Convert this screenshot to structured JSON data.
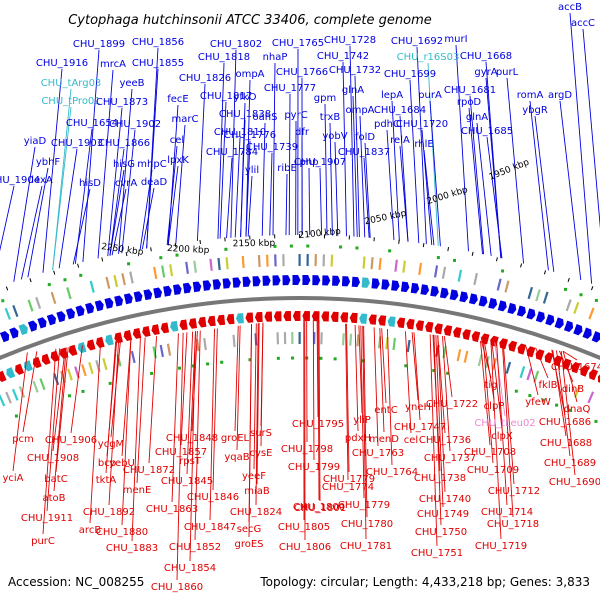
{
  "title": "Cytophaga hutchinsonii ATCC 33406, complete genome",
  "footer": {
    "accession": "Accession: NC_008255",
    "summary": "Topology: circular; Length: 4,433,218 bp; Genes: 3,833"
  },
  "kbp_ticks": [
    "1950 kbp",
    "2000 kbp",
    "2050 kbp",
    "2100 kbp",
    "2150 kbp",
    "2200 kbp",
    "2250 kbp"
  ],
  "colors": {
    "forward": "#0000e0",
    "reverse": "#e00000",
    "rna": "#33bbcc",
    "rrna_reverse": "#ee88cc",
    "backbone": "#777777"
  },
  "forward_labels": [
    {
      "text": "accB",
      "c": "forward"
    },
    {
      "text": "accC",
      "c": "forward"
    },
    {
      "text": "CHU_1692",
      "c": "forward"
    },
    {
      "text": "murI",
      "c": "forward"
    },
    {
      "text": "CHU_1728",
      "c": "forward"
    },
    {
      "text": "CHU_1668",
      "c": "forward"
    },
    {
      "text": "CHU_1765",
      "c": "forward"
    },
    {
      "text": "CHU_1802",
      "c": "forward"
    },
    {
      "text": "CHU_1856",
      "c": "forward"
    },
    {
      "text": "CHU_1899",
      "c": "forward"
    },
    {
      "text": "CHU_1742",
      "c": "forward"
    },
    {
      "text": "CHU_r16S03",
      "c": "rna"
    },
    {
      "text": "gyrA",
      "c": "forward"
    },
    {
      "text": "purL",
      "c": "forward"
    },
    {
      "text": "CHU_1916",
      "c": "forward"
    },
    {
      "text": "mrcA",
      "c": "forward"
    },
    {
      "text": "CHU_1855",
      "c": "forward"
    },
    {
      "text": "CHU_1818",
      "c": "forward"
    },
    {
      "text": "nhaP",
      "c": "forward"
    },
    {
      "text": "CHU_1732",
      "c": "forward"
    },
    {
      "text": "CHU_1699",
      "c": "forward"
    },
    {
      "text": "CHU_tArg03",
      "c": "rna"
    },
    {
      "text": "yeeB",
      "c": "forward"
    },
    {
      "text": "CHU_1826",
      "c": "forward"
    },
    {
      "text": "ompA",
      "c": "forward"
    },
    {
      "text": "CHU_1766",
      "c": "forward"
    },
    {
      "text": "glnA",
      "c": "forward"
    },
    {
      "text": "lepA",
      "c": "forward"
    },
    {
      "text": "purA",
      "c": "forward"
    },
    {
      "text": "CHU_1681",
      "c": "forward"
    },
    {
      "text": "romA",
      "c": "forward"
    },
    {
      "text": "argD",
      "c": "forward"
    },
    {
      "text": "CHU_tPro01",
      "c": "rna"
    },
    {
      "text": "CHU_1873",
      "c": "forward"
    },
    {
      "text": "fecE",
      "c": "forward"
    },
    {
      "text": "CHU_1817",
      "c": "forward"
    },
    {
      "text": "CHU_1777",
      "c": "forward"
    },
    {
      "text": "gpm",
      "c": "forward"
    },
    {
      "text": "ompA",
      "c": "forward"
    },
    {
      "text": "CHU_1684",
      "c": "forward"
    },
    {
      "text": "rpoD",
      "c": "forward"
    },
    {
      "text": "glnA",
      "c": "forward"
    },
    {
      "text": "ybgR",
      "c": "forward"
    },
    {
      "text": "yfkO",
      "c": "forward"
    },
    {
      "text": "CHU_1654",
      "c": "forward"
    },
    {
      "text": "CHU_1902",
      "c": "forward"
    },
    {
      "text": "marC",
      "c": "forward"
    },
    {
      "text": "CHU_1838",
      "c": "forward"
    },
    {
      "text": "oahS",
      "c": "forward"
    },
    {
      "text": "pyrC",
      "c": "forward"
    },
    {
      "text": "trxB",
      "c": "forward"
    },
    {
      "text": "pdhC",
      "c": "forward"
    },
    {
      "text": "CHU_1720",
      "c": "forward"
    },
    {
      "text": "CHU_1685",
      "c": "forward"
    },
    {
      "text": "yiaD",
      "c": "forward"
    },
    {
      "text": "CHU_1903",
      "c": "forward"
    },
    {
      "text": "CHU_1866",
      "c": "forward"
    },
    {
      "text": "cel",
      "c": "forward"
    },
    {
      "text": "CHU_1810",
      "c": "forward"
    },
    {
      "text": "CHU_1776",
      "c": "forward"
    },
    {
      "text": "dfr",
      "c": "forward"
    },
    {
      "text": "yobV",
      "c": "forward"
    },
    {
      "text": "folD",
      "c": "forward"
    },
    {
      "text": "relA",
      "c": "forward"
    },
    {
      "text": "rhlE",
      "c": "forward"
    },
    {
      "text": "hisG",
      "c": "forward"
    },
    {
      "text": "mhpC",
      "c": "forward"
    },
    {
      "text": "CHU_1784",
      "c": "forward"
    },
    {
      "text": "CHU_1739",
      "c": "forward"
    },
    {
      "text": "CHU_1907",
      "c": "forward"
    },
    {
      "text": "CHU_1837",
      "c": "forward"
    },
    {
      "text": "ybhF",
      "c": "forward"
    },
    {
      "text": "lpxK",
      "c": "forward"
    },
    {
      "text": "pnp",
      "c": "forward"
    },
    {
      "text": "ylil",
      "c": "forward"
    },
    {
      "text": "ribE",
      "c": "forward"
    },
    {
      "text": "CHU_1904",
      "c": "forward"
    },
    {
      "text": "lexA",
      "c": "forward"
    },
    {
      "text": "hisD",
      "c": "forward"
    },
    {
      "text": "cvrA",
      "c": "forward"
    },
    {
      "text": "deaD",
      "c": "forward"
    }
  ],
  "reverse_labels": [
    {
      "text": "CHU_1674",
      "c": "reverse"
    },
    {
      "text": "dinB",
      "c": "reverse"
    },
    {
      "text": "fklB",
      "c": "reverse"
    },
    {
      "text": "tig",
      "c": "reverse"
    },
    {
      "text": "yfeW",
      "c": "reverse"
    },
    {
      "text": "clpP",
      "c": "reverse"
    },
    {
      "text": "dnaQ",
      "c": "reverse"
    },
    {
      "text": "CHU_1722",
      "c": "reverse"
    },
    {
      "text": "CHU_1686",
      "c": "reverse"
    },
    {
      "text": "yneH",
      "c": "reverse"
    },
    {
      "text": "CHU_tLeu02",
      "c": "rrna_reverse"
    },
    {
      "text": "entC",
      "c": "reverse"
    },
    {
      "text": "yliP",
      "c": "reverse"
    },
    {
      "text": "clpX",
      "c": "reverse"
    },
    {
      "text": "CHU_1747",
      "c": "reverse"
    },
    {
      "text": "CHU_1795",
      "c": "reverse"
    },
    {
      "text": "surS",
      "c": "reverse"
    },
    {
      "text": "cel",
      "c": "reverse"
    },
    {
      "text": "CHU_1688",
      "c": "reverse"
    },
    {
      "text": "CHU_1848",
      "c": "reverse"
    },
    {
      "text": "groEL",
      "c": "reverse"
    },
    {
      "text": "pdxH",
      "c": "reverse"
    },
    {
      "text": "menD",
      "c": "reverse"
    },
    {
      "text": "CHU_1736",
      "c": "reverse"
    },
    {
      "text": "CHU_1708",
      "c": "reverse"
    },
    {
      "text": "pcm",
      "c": "reverse"
    },
    {
      "text": "CHU_1906",
      "c": "reverse"
    },
    {
      "text": "ycgM",
      "c": "reverse"
    },
    {
      "text": "CHU_1798",
      "c": "reverse"
    },
    {
      "text": "CHU_1763",
      "c": "reverse"
    },
    {
      "text": "CHU_1689",
      "c": "reverse"
    },
    {
      "text": "CHU_1908",
      "c": "reverse"
    },
    {
      "text": "yebU",
      "c": "reverse"
    },
    {
      "text": "CHU_1857",
      "c": "reverse"
    },
    {
      "text": "yqaB",
      "c": "reverse"
    },
    {
      "text": "cysE",
      "c": "reverse"
    },
    {
      "text": "CHU_1737",
      "c": "reverse"
    },
    {
      "text": "CHU_1709",
      "c": "reverse"
    },
    {
      "text": "bcp",
      "c": "reverse"
    },
    {
      "text": "CHU_1872",
      "c": "reverse"
    },
    {
      "text": "rpsT",
      "c": "reverse"
    },
    {
      "text": "CHU_1799",
      "c": "reverse"
    },
    {
      "text": "CHU_1779",
      "c": "reverse"
    },
    {
      "text": "CHU_1764",
      "c": "reverse"
    },
    {
      "text": "yciA",
      "c": "reverse"
    },
    {
      "text": "batC",
      "c": "reverse"
    },
    {
      "text": "tktA",
      "c": "reverse"
    },
    {
      "text": "CHU_1845",
      "c": "reverse"
    },
    {
      "text": "yeeF",
      "c": "reverse"
    },
    {
      "text": "CHU_1774",
      "c": "reverse"
    },
    {
      "text": "CHU_1738",
      "c": "reverse"
    },
    {
      "text": "CHU_1690",
      "c": "reverse"
    },
    {
      "text": "menE",
      "c": "reverse"
    },
    {
      "text": "miaB",
      "c": "reverse"
    },
    {
      "text": "CHU_1712",
      "c": "reverse"
    },
    {
      "text": "atoB",
      "c": "reverse"
    },
    {
      "text": "CHU_1846",
      "c": "reverse"
    },
    {
      "text": "CHU_1800",
      "c": "reverse"
    },
    {
      "text": "CHU_1740",
      "c": "reverse"
    },
    {
      "text": "CHU_1892",
      "c": "reverse"
    },
    {
      "text": "CHU_1863",
      "c": "reverse"
    },
    {
      "text": "CHU_1824",
      "c": "reverse"
    },
    {
      "text": "CHU_1801",
      "c": "reverse"
    },
    {
      "text": "CHU_1779",
      "c": "reverse"
    },
    {
      "text": "CHU_1714",
      "c": "reverse"
    },
    {
      "text": "CHU_1911",
      "c": "reverse"
    },
    {
      "text": "CHU_1880",
      "c": "reverse"
    },
    {
      "text": "CHU_1847",
      "c": "reverse"
    },
    {
      "text": "secG",
      "c": "reverse"
    },
    {
      "text": "CHU_1805",
      "c": "reverse"
    },
    {
      "text": "CHU_1780",
      "c": "reverse"
    },
    {
      "text": "CHU_1749",
      "c": "reverse"
    },
    {
      "text": "CHU_1718",
      "c": "reverse"
    },
    {
      "text": "arcB",
      "c": "reverse"
    },
    {
      "text": "purC",
      "c": "reverse"
    },
    {
      "text": "CHU_1883",
      "c": "reverse"
    },
    {
      "text": "CHU_1852",
      "c": "reverse"
    },
    {
      "text": "groES",
      "c": "reverse"
    },
    {
      "text": "CHU_1806",
      "c": "reverse"
    },
    {
      "text": "CHU_1781",
      "c": "reverse"
    },
    {
      "text": "CHU_1750",
      "c": "reverse"
    },
    {
      "text": "CHU_1719",
      "c": "reverse"
    },
    {
      "text": "CHU_1751",
      "c": "reverse"
    },
    {
      "text": "CHU_1854",
      "c": "reverse"
    },
    {
      "text": "CHU_1860",
      "c": "reverse"
    }
  ]
}
